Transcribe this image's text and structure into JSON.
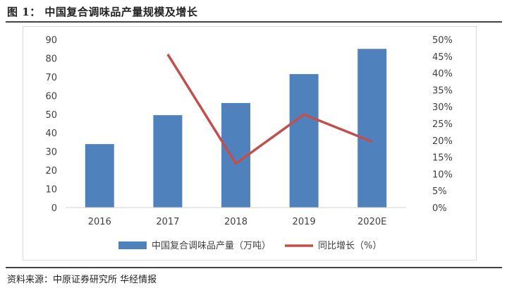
{
  "figure": {
    "title": "图 1：  中国复合调味品产量规模及增长",
    "source": "资料来源：中原证券研究所 华经情报"
  },
  "chart_data": {
    "type": "bar",
    "categories": [
      "2016",
      "2017",
      "2018",
      "2019",
      "2020E"
    ],
    "series": [
      {
        "name": "中国复合调味品产量（万吨）",
        "type": "bar",
        "axis": "left",
        "color": "#4f81bd",
        "values": [
          34,
          49.5,
          56,
          71.5,
          85
        ]
      },
      {
        "name": "同比增长（%）",
        "type": "line",
        "axis": "right",
        "color": "#c0504d",
        "values": [
          null,
          45.6,
          13.1,
          27.7,
          19.6
        ]
      }
    ],
    "left_axis": {
      "min": 0,
      "max": 90,
      "step": 10,
      "ticks": [
        "0",
        "10",
        "20",
        "30",
        "40",
        "50",
        "60",
        "70",
        "80",
        "90"
      ]
    },
    "right_axis": {
      "min": 0,
      "max": 50,
      "step": 5,
      "ticks": [
        "0%",
        "5%",
        "10%",
        "15%",
        "20%",
        "25%",
        "30%",
        "35%",
        "40%",
        "45%",
        "50%"
      ]
    },
    "grid": false,
    "legend_position": "bottom"
  }
}
